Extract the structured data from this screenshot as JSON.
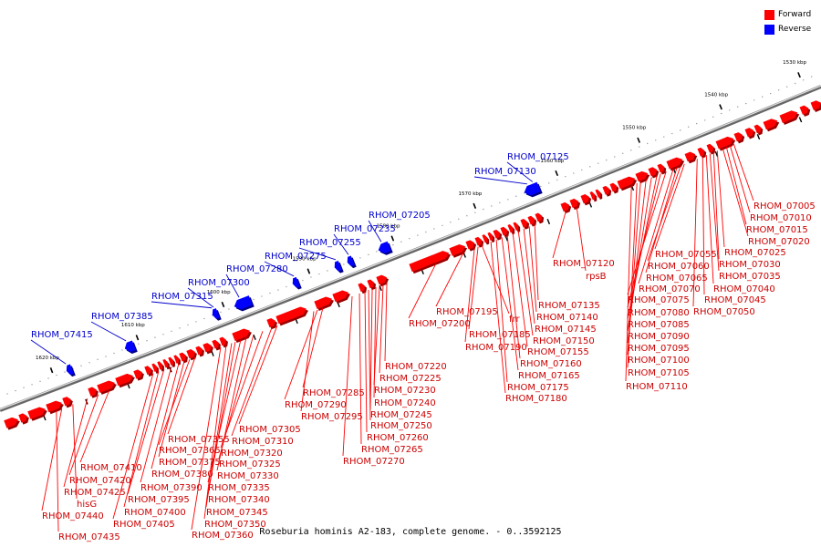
{
  "legend": {
    "forward": {
      "label": "Forward",
      "color": "#ff0000"
    },
    "reverse": {
      "label": "Reverse",
      "color": "#0000ff"
    }
  },
  "caption": "Roseburia hominis A2-183, complete genome. - 0..3592125",
  "axis_ticks": [
    "1530 kbp",
    "1540 kbp",
    "1550 kbp",
    "1560 kbp",
    "1570 kbp",
    "1580 kbp",
    "1590 kbp",
    "1600 kbp",
    "1610 kbp",
    "1620 kbp"
  ],
  "forward_labels": [
    "RHOM_07005",
    "RHOM_07010",
    "RHOM_07015",
    "RHOM_07020",
    "RHOM_07025",
    "RHOM_07030",
    "RHOM_07035",
    "RHOM_07040",
    "RHOM_07045",
    "RHOM_07050",
    "RHOM_07055",
    "RHOM_07060",
    "RHOM_07065",
    "RHOM_07070",
    "RHOM_07075",
    "RHOM_07080",
    "RHOM_07085",
    "RHOM_07090",
    "RHOM_07095",
    "RHOM_07100",
    "RHOM_07105",
    "RHOM_07110",
    "RHOM_07120",
    "rpsB",
    "RHOM_07135",
    "RHOM_07140",
    "RHOM_07145",
    "RHOM_07150",
    "RHOM_07155",
    "RHOM_07160",
    "RHOM_07165",
    "RHOM_07175",
    "RHOM_07180",
    "frr",
    "RHOM_07185",
    "RHOM_07190",
    "RHOM_07195",
    "RHOM_07200",
    "RHOM_07220",
    "RHOM_07225",
    "RHOM_07230",
    "RHOM_07240",
    "RHOM_07245",
    "RHOM_07250",
    "RHOM_07260",
    "RHOM_07265",
    "RHOM_07270",
    "RHOM_07285",
    "RHOM_07290",
    "RHOM_07295",
    "RHOM_07305",
    "RHOM_07310",
    "RHOM_07320",
    "RHOM_07325",
    "RHOM_07330",
    "RHOM_07335",
    "RHOM_07340",
    "RHOM_07345",
    "RHOM_07350",
    "RHOM_07360",
    "RHOM_07355",
    "RHOM_07365",
    "RHOM_07375",
    "RHOM_07380",
    "RHOM_07390",
    "RHOM_07395",
    "RHOM_07400",
    "RHOM_07405",
    "RHOM_07410",
    "RHOM_07420",
    "RHOM_07425",
    "hisG",
    "RHOM_07440",
    "RHOM_07435"
  ],
  "reverse_labels": [
    "RHOM_07125",
    "RHOM_07130",
    "RHOM_07205",
    "RHOM_07235",
    "RHOM_07255",
    "RHOM_07275",
    "RHOM_07280",
    "RHOM_07300",
    "RHOM_07315",
    "RHOM_07385",
    "RHOM_07415"
  ]
}
